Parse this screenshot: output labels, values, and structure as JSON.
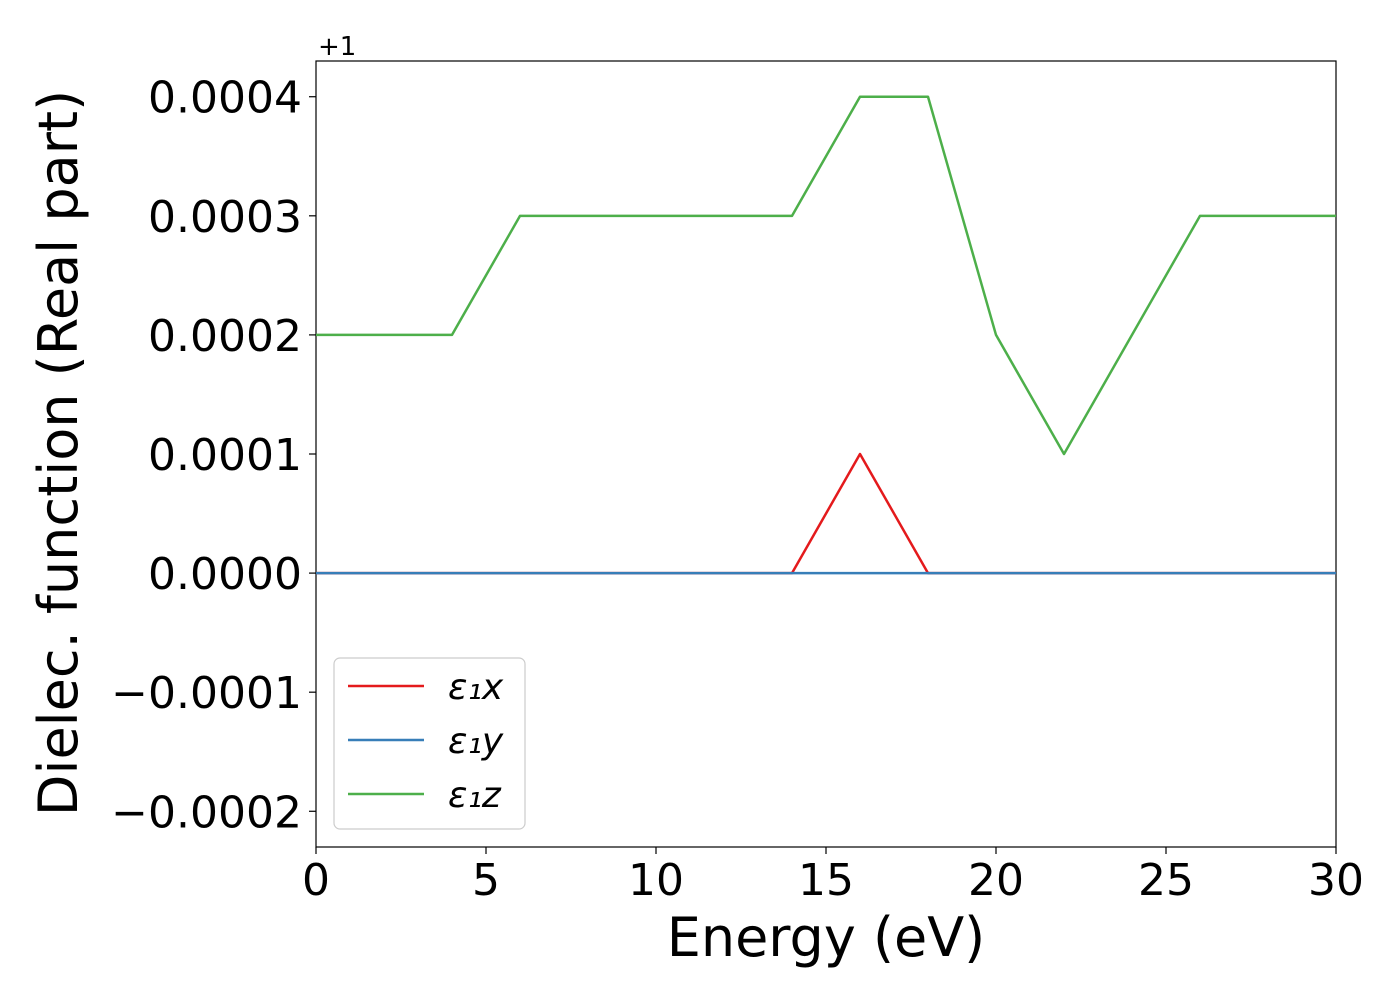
{
  "chart_data": {
    "type": "line",
    "xlabel": "Energy (eV)",
    "ylabel": "Dielec. function (Real part)",
    "y_offset_label": "+1",
    "xlim": [
      0,
      30
    ],
    "ylim": [
      -0.00023,
      0.00043
    ],
    "x_ticks": [
      0,
      5,
      10,
      15,
      20,
      25,
      30
    ],
    "x_tick_labels": [
      "0",
      "5",
      "10",
      "15",
      "20",
      "25",
      "30"
    ],
    "y_ticks": [
      -0.0002,
      -0.0001,
      0,
      0.0001,
      0.0002,
      0.0003,
      0.0004
    ],
    "y_tick_labels": [
      "−0.0002",
      "−0.0001",
      "0.0000",
      "0.0001",
      "0.0002",
      "0.0003",
      "0.0004"
    ],
    "grid": false,
    "legend_position": "lower-left",
    "series": [
      {
        "name": "ε₁x",
        "color": "#e41a1c",
        "x": [
          0,
          2,
          4,
          6,
          8,
          10,
          12,
          14,
          16,
          18,
          20,
          22,
          24,
          26,
          28,
          30
        ],
        "y": [
          0,
          0,
          0,
          0,
          0,
          0,
          0,
          0,
          0.0001,
          0,
          0,
          0,
          0,
          0,
          0,
          0
        ]
      },
      {
        "name": "ε₁y",
        "color": "#377eb8",
        "x": [
          0,
          2,
          4,
          6,
          8,
          10,
          12,
          14,
          16,
          18,
          20,
          22,
          24,
          26,
          28,
          30
        ],
        "y": [
          0,
          0,
          0,
          0,
          0,
          0,
          0,
          0,
          0,
          0,
          0,
          0,
          0,
          0,
          0,
          0
        ]
      },
      {
        "name": "ε₁z",
        "color": "#4daf4a",
        "x": [
          0,
          2,
          4,
          6,
          8,
          10,
          12,
          14,
          16,
          18,
          20,
          22,
          24,
          26,
          28,
          30
        ],
        "y": [
          0.0002,
          0.0002,
          0.0002,
          0.0003,
          0.0003,
          0.0003,
          0.0003,
          0.0003,
          0.0004,
          0.0004,
          0.0002,
          0.0001,
          0.0002,
          0.0003,
          0.0003,
          0.0003
        ]
      }
    ]
  }
}
